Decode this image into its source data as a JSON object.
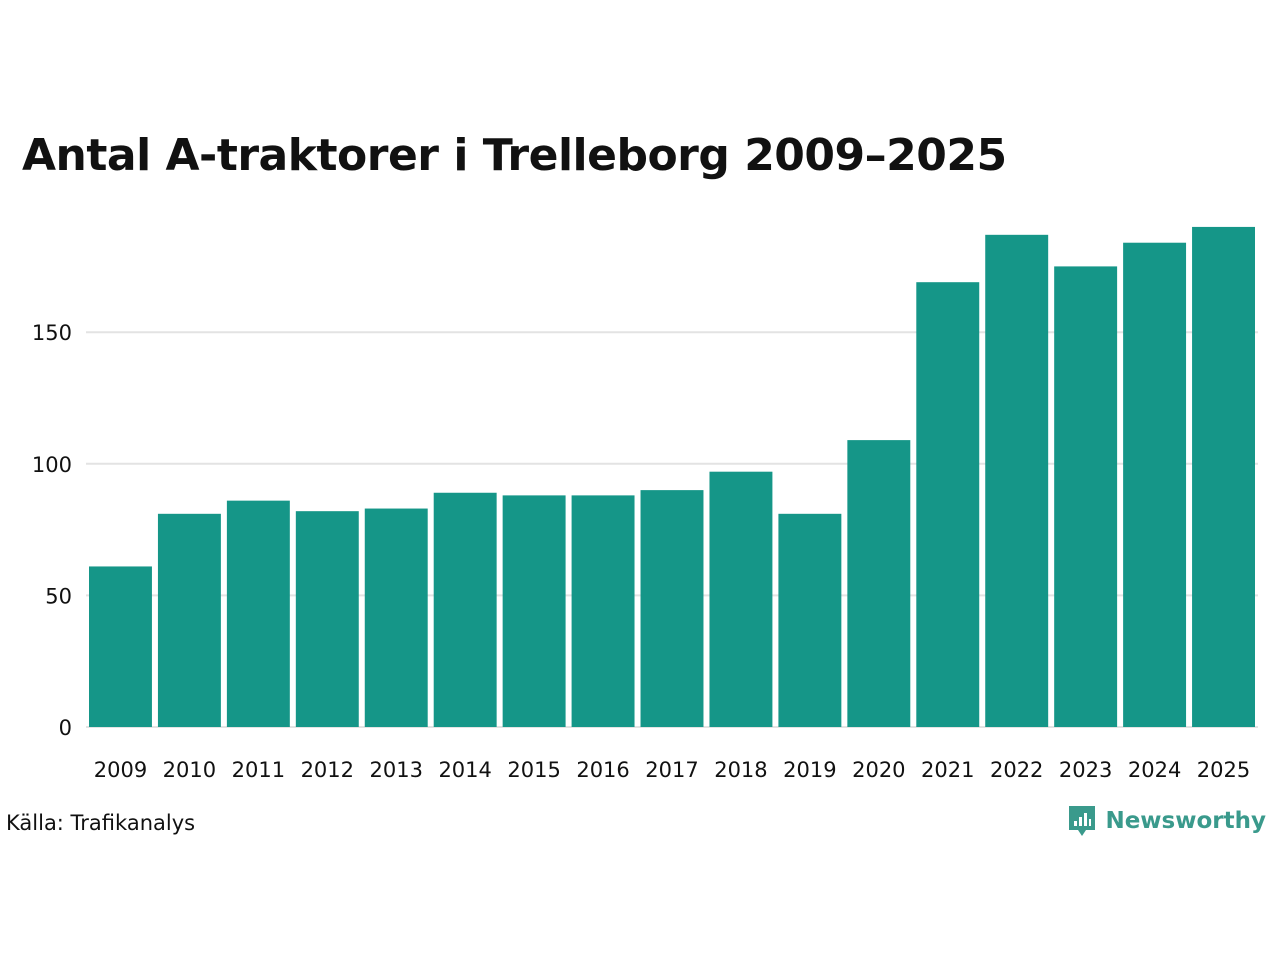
{
  "chart_data": {
    "type": "bar",
    "title": "Antal A-traktorer i Trelleborg 2009–2025",
    "xlabel": "",
    "ylabel": "",
    "categories": [
      "2009",
      "2010",
      "2011",
      "2012",
      "2013",
      "2014",
      "2015",
      "2016",
      "2017",
      "2018",
      "2019",
      "2020",
      "2021",
      "2022",
      "2023",
      "2024",
      "2025"
    ],
    "values": [
      61,
      81,
      86,
      82,
      83,
      89,
      88,
      88,
      90,
      97,
      81,
      109,
      169,
      187,
      175,
      184,
      190
    ],
    "ylim": [
      0,
      200
    ],
    "yticks": [
      0,
      50,
      100,
      150
    ],
    "ytick_labels": [
      "0",
      "50",
      "100",
      "150"
    ],
    "grid": true,
    "legend": "none",
    "bar_color": "#159688",
    "grid_color": "#e3e3e3"
  },
  "source": "Källa: Trafikanalys",
  "logo": {
    "text": "Newsworthy",
    "icon": "newsworthy-logo-icon",
    "color": "#3a9a8c"
  }
}
